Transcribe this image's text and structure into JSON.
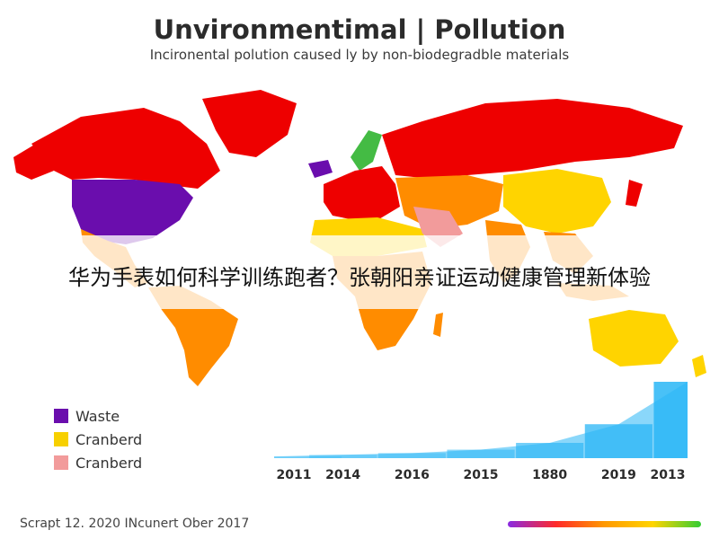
{
  "title": "Unvironmentimal | Pollution",
  "subtitle": "Incironental polution caused ly by non-biodegradble materials",
  "banner": "华为手表如何科学训练跑者？张朝阳亲证运动健康管理新体验",
  "legend": [
    {
      "label": "Waste",
      "color": "#6a0dad"
    },
    {
      "label": "Cranberd",
      "color": "#f7d000"
    },
    {
      "label": "Cranberd",
      "color": "#f29b9b"
    }
  ],
  "colors": {
    "red": "#ee0000",
    "orange": "#ff8c00",
    "yellow": "#ffd400",
    "purple": "#6a0dad",
    "green": "#44bb44",
    "pink": "#f29b9b",
    "trend": "#29b6f6"
  },
  "chart_data": {
    "type": "area",
    "categories": [
      "2011",
      "2014",
      "2016",
      "2015",
      "1880",
      "2019",
      "2013"
    ],
    "values": [
      1,
      2,
      3,
      5,
      9,
      20,
      45
    ],
    "title": "",
    "xlabel": "",
    "ylabel": ""
  },
  "footer": "Scrapt 12. 2020 INcunert Ober 2017",
  "gradient_colors": [
    "#8a2be2",
    "#ff2a2a",
    "#ff9900",
    "#ffd400",
    "#33cc33"
  ]
}
